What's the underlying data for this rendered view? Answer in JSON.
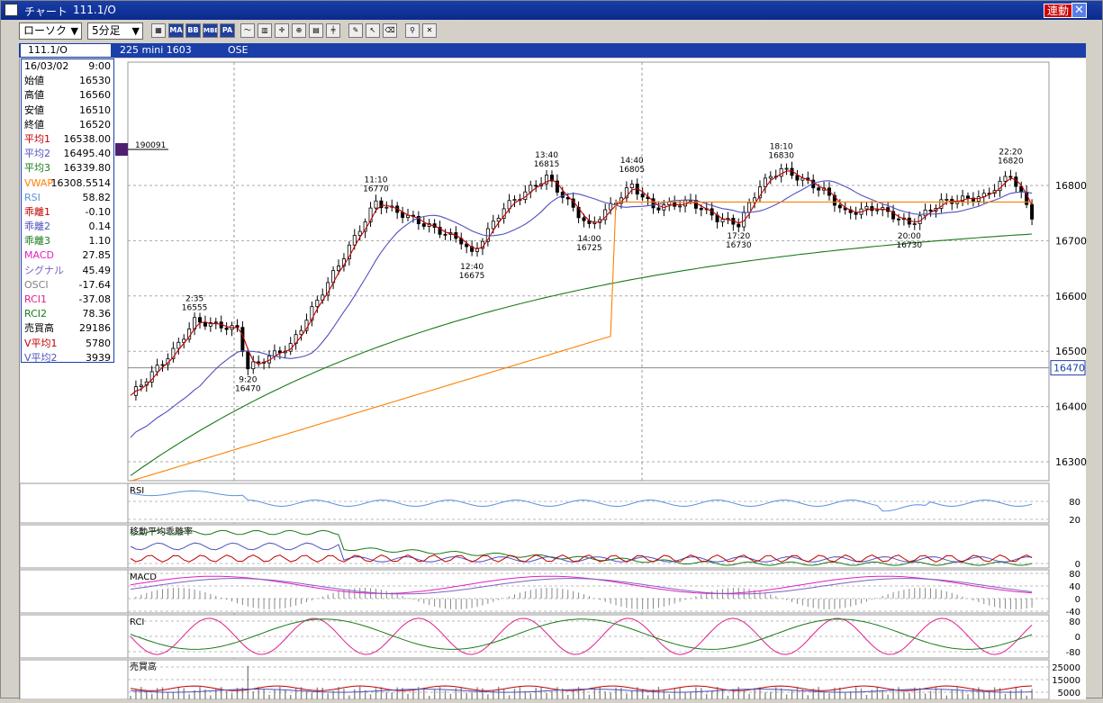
{
  "window": {
    "title_icon": "chart-icon",
    "title": "チャート",
    "symbol": "111.1/O",
    "link_button": "連動",
    "close": "✕"
  },
  "toolbar": {
    "chart_type": "ローソク",
    "interval": "5分足",
    "buttons": [
      "MA",
      "BB",
      "MBB",
      "PA"
    ]
  },
  "infobar": {
    "symbol_box": "111.1/O",
    "contract": "225 mini 1603",
    "exchange": "OSE"
  },
  "colors": {
    "rsi": "#5b8fe0",
    "ma1": "#c00000",
    "ma2": "#5050c0",
    "ma3": "#1a7a1a",
    "vwap": "#ff7f00",
    "macd": "#e020c0",
    "signal": "#8060c0",
    "rci1": "#e0208c",
    "rci2": "#1a7a1a"
  },
  "datapanel": [
    {
      "k": "16/03/02",
      "v": "9:00",
      "c": "#000"
    },
    {
      "k": "始値",
      "v": "16530",
      "c": "#000"
    },
    {
      "k": "高値",
      "v": "16560",
      "c": "#000"
    },
    {
      "k": "安値",
      "v": "16510",
      "c": "#000"
    },
    {
      "k": "終値",
      "v": "16520",
      "c": "#000"
    },
    {
      "k": "平均1",
      "v": "16538.00",
      "c": "#c00000"
    },
    {
      "k": "平均2",
      "v": "16495.40",
      "c": "#5050c0"
    },
    {
      "k": "平均3",
      "v": "16339.80",
      "c": "#1a7a1a"
    },
    {
      "k": "VWAP",
      "v": "16308.5514",
      "c": "#ff7f00"
    },
    {
      "k": "RSI",
      "v": "58.82",
      "c": "#5b8fe0"
    },
    {
      "k": "乖離1",
      "v": "-0.10",
      "c": "#c00000"
    },
    {
      "k": "乖離2",
      "v": "0.14",
      "c": "#5050c0"
    },
    {
      "k": "乖離3",
      "v": "1.10",
      "c": "#1a7a1a"
    },
    {
      "k": "MACD",
      "v": "27.85",
      "c": "#e020c0"
    },
    {
      "k": "シグナル",
      "v": "45.49",
      "c": "#8060c0"
    },
    {
      "k": "OSCI",
      "v": "-17.64",
      "c": "#808080"
    },
    {
      "k": "RCI1",
      "v": "-37.08",
      "c": "#e0208c"
    },
    {
      "k": "RCI2",
      "v": "78.36",
      "c": "#1a7a1a"
    },
    {
      "k": "売買高",
      "v": "29186",
      "c": "#000"
    },
    {
      "k": "V平均1",
      "v": "5780",
      "c": "#c00000"
    },
    {
      "k": "V平均2",
      "v": "3939",
      "c": "#5050c0"
    }
  ],
  "main_chart": {
    "y_ticks": [
      "16800",
      "16700",
      "16600",
      "16500",
      "16400",
      "16300"
    ],
    "current_price": "16470",
    "order_label": "190091",
    "annotations": [
      {
        "time": "2:35",
        "price": "16555"
      },
      {
        "time": "9:20",
        "price": "16470"
      },
      {
        "time": "11:10",
        "price": "16770"
      },
      {
        "time": "12:40",
        "price": "16675"
      },
      {
        "time": "13:40",
        "price": "16815"
      },
      {
        "time": "14:00",
        "price": "16725"
      },
      {
        "time": "14:40",
        "price": "16805"
      },
      {
        "time": "17:20",
        "price": "16730"
      },
      {
        "time": "18:10",
        "price": "16830"
      },
      {
        "time": "20:00",
        "price": "16730"
      },
      {
        "time": "22:20",
        "price": "16820"
      }
    ]
  },
  "panels": {
    "rsi": {
      "title": "RSI",
      "ticks": [
        "80",
        "20"
      ]
    },
    "kairi": {
      "title": "移動平均乖離率",
      "ticks": [
        "0"
      ]
    },
    "macd": {
      "title": "MACD",
      "ticks": [
        "80",
        "40",
        "0",
        "-40"
      ]
    },
    "rci": {
      "title": "RCI",
      "ticks": [
        "80",
        "0",
        "-80"
      ]
    },
    "volume": {
      "title": "売買高",
      "ticks": [
        "25000",
        "15000",
        "5000"
      ]
    }
  }
}
